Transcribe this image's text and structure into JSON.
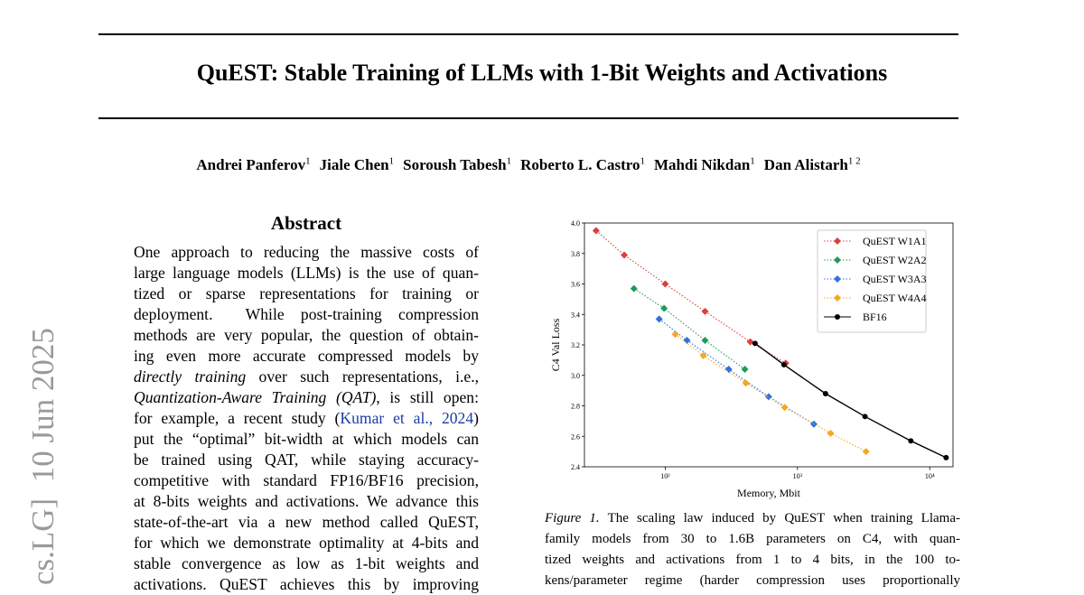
{
  "arxiv_stamp": "cs.LG]  10 Jun 2025",
  "header": {
    "title": "QuEST: Stable Training of LLMs with 1-Bit Weights and Activations"
  },
  "authors": [
    {
      "name": "Andrei Panferov",
      "affiliation": "1"
    },
    {
      "name": "Jiale Chen",
      "affiliation": "1"
    },
    {
      "name": "Soroush Tabesh",
      "affiliation": "1"
    },
    {
      "name": "Roberto L. Castro",
      "affiliation": "1"
    },
    {
      "name": "Mahdi Nikdan",
      "affiliation": "1"
    },
    {
      "name": "Dan Alistarh",
      "affiliation": "1 2"
    }
  ],
  "abstract": {
    "heading": "Abstract",
    "lines": [
      [
        {
          "text": "One approach to reducing the massive costs of"
        }
      ],
      [
        {
          "text": "large language models (LLMs) is the use of quan-"
        }
      ],
      [
        {
          "text": "tized or sparse representations for training or"
        }
      ],
      [
        {
          "text": "deployment.  While post-training compression"
        }
      ],
      [
        {
          "text": "methods are very popular, the question of obtain-"
        }
      ],
      [
        {
          "text": "ing even more accurate compressed models by"
        }
      ],
      [
        {
          "text": "directly training",
          "italic": true
        },
        {
          "text": " over such representations, i.e.,"
        }
      ],
      [
        {
          "text": "Quantization-Aware Training (QAT)",
          "italic": true
        },
        {
          "text": ", is still open:"
        }
      ],
      [
        {
          "text": "for example, a recent study ("
        },
        {
          "text": "Kumar et al., 2024",
          "link": true
        },
        {
          "text": ")"
        }
      ],
      [
        {
          "text": "put the “optimal” bit-width at which models can"
        }
      ],
      [
        {
          "text": "be trained using QAT, while staying accuracy-"
        }
      ],
      [
        {
          "text": "competitive with standard FP16/BF16 precision,"
        }
      ],
      [
        {
          "text": "at 8-bits weights and activations. We advance this"
        }
      ],
      [
        {
          "text": "state-of-the-art via a new method called QuEST,"
        }
      ],
      [
        {
          "text": "for which we demonstrate optimality at 4-bits and"
        }
      ],
      [
        {
          "text": "stable convergence as low as 1-bit weights and"
        }
      ],
      [
        {
          "text": "activations. QuEST achieves this by improving"
        }
      ]
    ]
  },
  "figure": {
    "chart_data": {
      "type": "line",
      "x_scale": "log",
      "xlabel": "Memory, Mbit",
      "ylabel": "C4 Val Loss",
      "xlim": [
        24.5,
        15000
      ],
      "ylim": [
        2.4,
        4.0
      ],
      "xticks": [
        {
          "value": 100,
          "label": "10²"
        },
        {
          "value": 1000,
          "label": "10³"
        },
        {
          "value": 10000,
          "label": "10⁴"
        }
      ],
      "yticks": [
        2.4,
        2.6,
        2.8,
        {
          "value": 3.0,
          "label": "3.0"
        },
        3.2,
        3.4,
        3.6,
        3.8,
        {
          "value": 4.0,
          "label": "4.0"
        }
      ],
      "legend": "upper right",
      "series": [
        {
          "name": "QuEST W1A1",
          "color": "#d9413a",
          "marker": "diamond",
          "linestyle": "dotted",
          "x": [
            30,
            49,
            100,
            200,
            440,
            815
          ],
          "values": [
            3.95,
            3.79,
            3.6,
            3.42,
            3.22,
            3.08
          ]
        },
        {
          "name": "QuEST W2A2",
          "color": "#1e9a5a",
          "marker": "diamond",
          "linestyle": "dotted",
          "x": [
            58,
            98,
            200,
            400
          ],
          "values": [
            3.57,
            3.44,
            3.23,
            3.04
          ]
        },
        {
          "name": "QuEST W3A3",
          "color": "#2f6fe0",
          "marker": "diamond",
          "linestyle": "dotted",
          "x": [
            90,
            146,
            302,
            605,
            1330
          ],
          "values": [
            3.37,
            3.23,
            3.04,
            2.86,
            2.68
          ]
        },
        {
          "name": "QuEST W4A4",
          "color": "#f5a623",
          "marker": "diamond",
          "linestyle": "dotted",
          "x": [
            119,
            194,
            407,
            800,
            1780,
            3300
          ],
          "values": [
            3.27,
            3.13,
            2.95,
            2.79,
            2.62,
            2.5
          ]
        },
        {
          "name": "BF16",
          "color": "#000000",
          "marker": "circle",
          "linestyle": "solid",
          "x": [
            478,
            790,
            1630,
            3240,
            7200,
            13300
          ],
          "values": [
            3.21,
            3.07,
            2.88,
            2.73,
            2.57,
            2.46
          ]
        }
      ]
    },
    "caption": [
      [
        {
          "text": "Figure 1.",
          "italic": true
        },
        {
          "text": " The scaling law induced by QuEST when training Llama-"
        }
      ],
      [
        {
          "text": "family models from 30 to 1.6B parameters on C4, with quan-"
        }
      ],
      [
        {
          "text": "tized weights and activations from 1 to 4 bits, in the 100 to-"
        }
      ],
      [
        {
          "text": "kens/parameter regime (harder compression uses proportionally"
        }
      ]
    ]
  }
}
